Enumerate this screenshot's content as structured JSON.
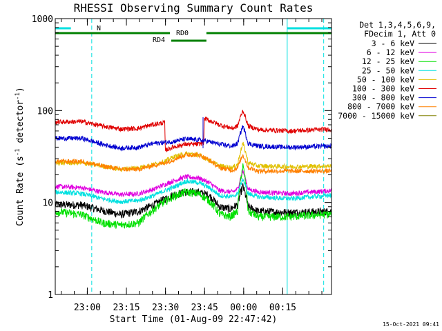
{
  "chart_data": {
    "type": "line",
    "title": "RHESSI Observing Summary Count Rates",
    "xlabel": "Start Time (01-Aug-09 22:47:42)",
    "ylabel_main": "Count Rate (s",
    "ylabel_sup1": "-1",
    "ylabel_mid": " detector",
    "ylabel_sup2": "-1",
    "ylabel_end": ")",
    "yscale": "log",
    "ylim": [
      1,
      1000
    ],
    "xlim_minutes": [
      0,
      106
    ],
    "y_ticks": [
      {
        "value": 1,
        "label": "1"
      },
      {
        "value": 10,
        "label": "10"
      },
      {
        "value": 100,
        "label": "100"
      },
      {
        "value": 1000,
        "label": "1000"
      }
    ],
    "x_ticks": [
      {
        "minute": 12.3,
        "label": "23:00"
      },
      {
        "minute": 27.3,
        "label": "23:15"
      },
      {
        "minute": 42.3,
        "label": "23:30"
      },
      {
        "minute": 57.3,
        "label": "23:45"
      },
      {
        "minute": 72.3,
        "label": "00:00"
      },
      {
        "minute": 87.3,
        "label": "00:15"
      }
    ],
    "legend_header": [
      "Det 1,3,4,5,6,9,",
      "FDecim 1, Att 0"
    ],
    "series": [
      {
        "name": "3 - 6 keV",
        "color": "#000000",
        "points": [
          [
            0,
            9.5
          ],
          [
            10,
            9.4
          ],
          [
            18,
            8.2
          ],
          [
            25,
            7.4
          ],
          [
            32,
            8
          ],
          [
            38,
            9.5
          ],
          [
            45,
            12
          ],
          [
            50,
            13
          ],
          [
            55,
            13
          ],
          [
            59,
            12
          ],
          [
            63,
            9
          ],
          [
            67,
            8.5
          ],
          [
            70,
            9.5
          ],
          [
            72,
            15
          ],
          [
            74,
            9
          ],
          [
            78,
            8
          ],
          [
            90,
            7.8
          ],
          [
            106,
            8
          ]
        ]
      },
      {
        "name": "6 - 12 keV",
        "color": "#e000e0",
        "points": [
          [
            0,
            15
          ],
          [
            10,
            14.5
          ],
          [
            18,
            13
          ],
          [
            25,
            12.2
          ],
          [
            32,
            12.5
          ],
          [
            38,
            14
          ],
          [
            45,
            17
          ],
          [
            50,
            19
          ],
          [
            55,
            18.5
          ],
          [
            59,
            16.5
          ],
          [
            63,
            13.5
          ],
          [
            68,
            13
          ],
          [
            70,
            14
          ],
          [
            72,
            22
          ],
          [
            74,
            14
          ],
          [
            78,
            13
          ],
          [
            90,
            12.5
          ],
          [
            106,
            13.5
          ]
        ]
      },
      {
        "name": "12 - 25 keV",
        "color": "#00e000",
        "points": [
          [
            0,
            8
          ],
          [
            10,
            7.4
          ],
          [
            18,
            6
          ],
          [
            25,
            5.7
          ],
          [
            32,
            6
          ],
          [
            38,
            8.5
          ],
          [
            45,
            11.5
          ],
          [
            50,
            13
          ],
          [
            55,
            12.5
          ],
          [
            59,
            10.5
          ],
          [
            63,
            7.5
          ],
          [
            67,
            7
          ],
          [
            70,
            8
          ],
          [
            72,
            25
          ],
          [
            74,
            8
          ],
          [
            78,
            7
          ],
          [
            90,
            7
          ],
          [
            106,
            7.5
          ]
        ]
      },
      {
        "name": "25 - 50 keV",
        "color": "#00e0e0",
        "points": [
          [
            0,
            13
          ],
          [
            10,
            12.5
          ],
          [
            18,
            11
          ],
          [
            25,
            10.2
          ],
          [
            32,
            10.5
          ],
          [
            38,
            12
          ],
          [
            45,
            14.5
          ],
          [
            50,
            17
          ],
          [
            55,
            16.5
          ],
          [
            59,
            14.5
          ],
          [
            63,
            12
          ],
          [
            68,
            11.5
          ],
          [
            70,
            12.5
          ],
          [
            72,
            18
          ],
          [
            74,
            12.5
          ],
          [
            78,
            11.5
          ],
          [
            90,
            11
          ],
          [
            106,
            12
          ]
        ]
      },
      {
        "name": "50 - 100 keV",
        "color": "#e0c000",
        "points": [
          [
            0,
            27
          ],
          [
            10,
            27
          ],
          [
            18,
            25
          ],
          [
            25,
            23
          ],
          [
            32,
            24
          ],
          [
            38,
            26
          ],
          [
            42,
            28
          ],
          [
            45,
            31
          ],
          [
            50,
            34
          ],
          [
            55,
            33
          ],
          [
            59,
            29
          ],
          [
            63,
            25
          ],
          [
            68,
            24
          ],
          [
            70,
            26
          ],
          [
            72,
            44
          ],
          [
            74,
            27
          ],
          [
            78,
            25
          ],
          [
            90,
            24.5
          ],
          [
            106,
            25
          ]
        ]
      },
      {
        "name": "100 - 300 keV",
        "color": "#e00000",
        "points": [
          [
            0,
            75
          ],
          [
            10,
            76
          ],
          [
            18,
            68
          ],
          [
            25,
            63
          ],
          [
            32,
            64
          ],
          [
            37,
            70
          ],
          [
            42,
            74
          ],
          [
            42.2,
            37
          ],
          [
            45,
            40
          ],
          [
            50,
            43
          ],
          [
            55,
            43
          ],
          [
            57,
            45
          ],
          [
            57.2,
            82
          ],
          [
            63,
            70
          ],
          [
            68,
            64
          ],
          [
            70,
            68
          ],
          [
            72,
            100
          ],
          [
            74,
            68
          ],
          [
            78,
            62
          ],
          [
            90,
            60
          ],
          [
            106,
            63
          ]
        ]
      },
      {
        "name": "300 - 800 keV",
        "color": "#0000d0",
        "points": [
          [
            0,
            50
          ],
          [
            10,
            50
          ],
          [
            18,
            43
          ],
          [
            25,
            39
          ],
          [
            32,
            40
          ],
          [
            38,
            44
          ],
          [
            42,
            45
          ],
          [
            45,
            46
          ],
          [
            50,
            49
          ],
          [
            55,
            48
          ],
          [
            59,
            46
          ],
          [
            63,
            43
          ],
          [
            68,
            41
          ],
          [
            70,
            44
          ],
          [
            72,
            68
          ],
          [
            74,
            44
          ],
          [
            78,
            41
          ],
          [
            90,
            40
          ],
          [
            106,
            41
          ]
        ]
      },
      {
        "name": "800 - 7000 keV",
        "color": "#ff8000",
        "points": [
          [
            0,
            28
          ],
          [
            10,
            28
          ],
          [
            18,
            25
          ],
          [
            25,
            23
          ],
          [
            32,
            23
          ],
          [
            38,
            25.5
          ],
          [
            42,
            27
          ],
          [
            45,
            29
          ],
          [
            50,
            33
          ],
          [
            55,
            33
          ],
          [
            59,
            29
          ],
          [
            63,
            24
          ],
          [
            68,
            22.5
          ],
          [
            70,
            24
          ],
          [
            72,
            33
          ],
          [
            74,
            24
          ],
          [
            78,
            22
          ],
          [
            90,
            22
          ],
          [
            106,
            22
          ]
        ]
      },
      {
        "name": "7000 - 15000 keV",
        "color": "#808000",
        "points": []
      }
    ],
    "flag_bars": [
      {
        "label": "N",
        "color": "#00e0e0",
        "segments": [
          [
            0,
            6
          ],
          [
            89,
            106
          ]
        ]
      },
      {
        "label": "RD0",
        "color": "#008000",
        "segments": [
          [
            0,
            44
          ],
          [
            58,
            106
          ]
        ]
      },
      {
        "label": "RD4",
        "color": "#008000",
        "segments": [
          [
            44.5,
            58
          ]
        ]
      }
    ],
    "saa_lines": {
      "solid": [
        0,
        89
      ],
      "dashed": [
        14,
        103
      ]
    },
    "footer_timestamp": "15-Oct-2021 09:41"
  }
}
